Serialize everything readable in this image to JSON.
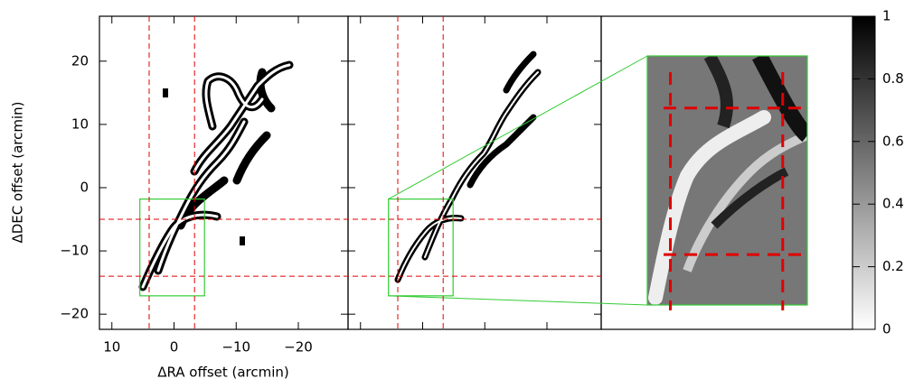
{
  "chart_data": {
    "type": "image",
    "xlabel": "ΔRA offset (arcmin)",
    "ylabel": "ΔDEC offset (arcmin)",
    "xlim": [
      12,
      -28
    ],
    "ylim": [
      -22.4,
      27.1
    ],
    "xticks": [
      10,
      0,
      {
        "value": -10,
        "label": "−10"
      },
      {
        "value": -20,
        "label": "−20"
      }
    ],
    "yticks": [
      20,
      10,
      0,
      {
        "value": -10,
        "label": "−10"
      },
      {
        "value": -20,
        "label": "−20"
      }
    ],
    "colorbar": {
      "lim": [
        0,
        1
      ],
      "ticks": [
        0,
        0.2,
        0.4,
        0.6,
        0.8,
        1
      ]
    },
    "cut_ra": [
      4,
      -3.3
    ],
    "cut_dec": [
      -5,
      -14
    ],
    "cut_color": "#e00000",
    "zoom_ra": [
      5.5,
      -4.9
    ],
    "zoom_dec": [
      -1.8,
      -17.1
    ],
    "zoom_color": "#33cc33"
  }
}
